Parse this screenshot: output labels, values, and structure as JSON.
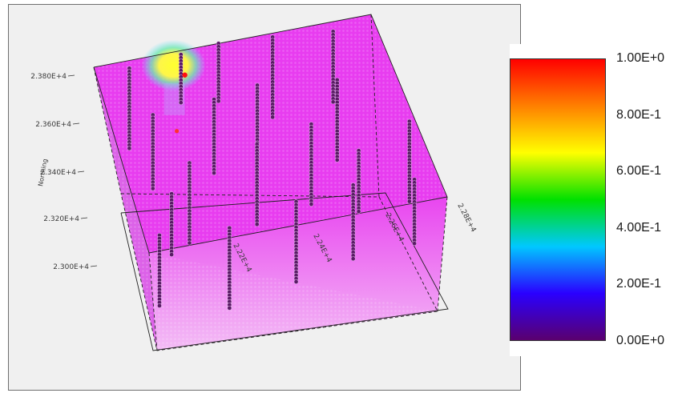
{
  "chart_data": {
    "type": "3d-volume-scatter",
    "title": "",
    "axes": {
      "northing": {
        "label": "Northing",
        "ticks": [
          "2.380E+4",
          "2.360E+4",
          "2.340E+4",
          "2.320E+4",
          "2.300E+4"
        ]
      },
      "easting": {
        "ticks": [
          "2.28E+4",
          "2.26E+4",
          "2.24E+4",
          "2.22E+4"
        ]
      }
    },
    "colorbar": {
      "min": 0.0,
      "max": 1.0,
      "ticks": [
        "1.00E+0",
        "8.00E-1",
        "6.00E-1",
        "4.00E-1",
        "2.00E-1",
        "0.00E+0"
      ],
      "tick_values": [
        1.0,
        0.8,
        0.6,
        0.4,
        0.2,
        0.0
      ],
      "colors": [
        "#5a006e",
        "#2a00ff",
        "#00c8ff",
        "#00e000",
        "#ffff00",
        "#ff8000",
        "#ff0000"
      ]
    },
    "volume_fill_color": "#e83cf0",
    "boreholes": [
      {
        "u": 0.12,
        "v": 0.04,
        "h": 0.55
      },
      {
        "u": 0.31,
        "v": 0.02,
        "h": 0.34
      },
      {
        "u": 0.45,
        "v": 0.0,
        "h": 0.4
      },
      {
        "u": 0.64,
        "v": 0.02,
        "h": 0.55
      },
      {
        "u": 0.85,
        "v": 0.05,
        "h": 0.48
      },
      {
        "u": 0.15,
        "v": 0.3,
        "h": 0.5
      },
      {
        "u": 0.37,
        "v": 0.28,
        "h": 0.52
      },
      {
        "u": 0.53,
        "v": 0.25,
        "h": 0.5
      },
      {
        "u": 0.8,
        "v": 0.3,
        "h": 0.55
      },
      {
        "u": 0.22,
        "v": 0.58,
        "h": 0.55
      },
      {
        "u": 0.46,
        "v": 0.55,
        "h": 0.55
      },
      {
        "u": 0.66,
        "v": 0.5,
        "h": 0.55
      },
      {
        "u": 0.98,
        "v": 0.58,
        "h": 0.55
      },
      {
        "u": 0.05,
        "v": 0.92,
        "h": 0.48
      },
      {
        "u": 0.28,
        "v": 0.95,
        "h": 0.55
      },
      {
        "u": 0.52,
        "v": 0.88,
        "h": 0.55
      },
      {
        "u": 0.72,
        "v": 0.85,
        "h": 0.5
      },
      {
        "u": 0.92,
        "v": 0.88,
        "h": 0.45
      },
      {
        "u": 0.13,
        "v": 0.72,
        "h": 0.42
      },
      {
        "u": 0.78,
        "v": 0.68,
        "h": 0.42
      }
    ],
    "hotspot": {
      "u": 0.3,
      "v": 0.05,
      "value": 0.62
    }
  }
}
